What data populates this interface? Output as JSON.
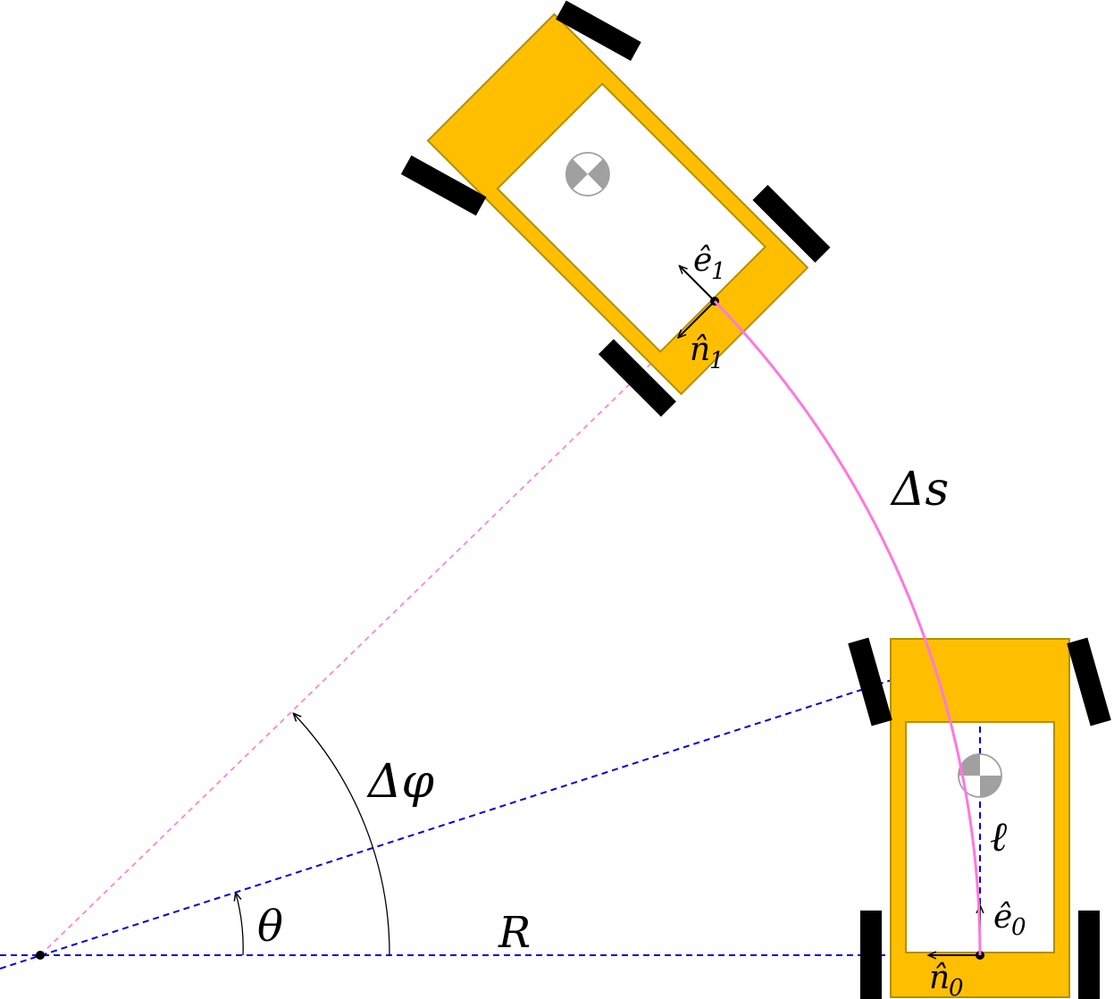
{
  "labels": {
    "delta_s": "Δs",
    "delta_phi": "Δφ",
    "theta": "θ",
    "radius": "R",
    "ell": "ℓ",
    "e0": "ê",
    "e0_sub": "0",
    "n0": "n̂",
    "n0_sub": "0",
    "e1": "ê",
    "e1_sub": "1",
    "n1": "n̂",
    "n1_sub": "1"
  },
  "colors": {
    "body": "#FFBF00",
    "body_stroke": "#B38F00",
    "wheel": "#000000",
    "path": "#FF77DD",
    "construction": "#0000DD",
    "marker": "#A0A0A0"
  },
  "icons": {
    "center_of_mass": "center-of-mass-icon",
    "wheel": "wheel-rect"
  }
}
